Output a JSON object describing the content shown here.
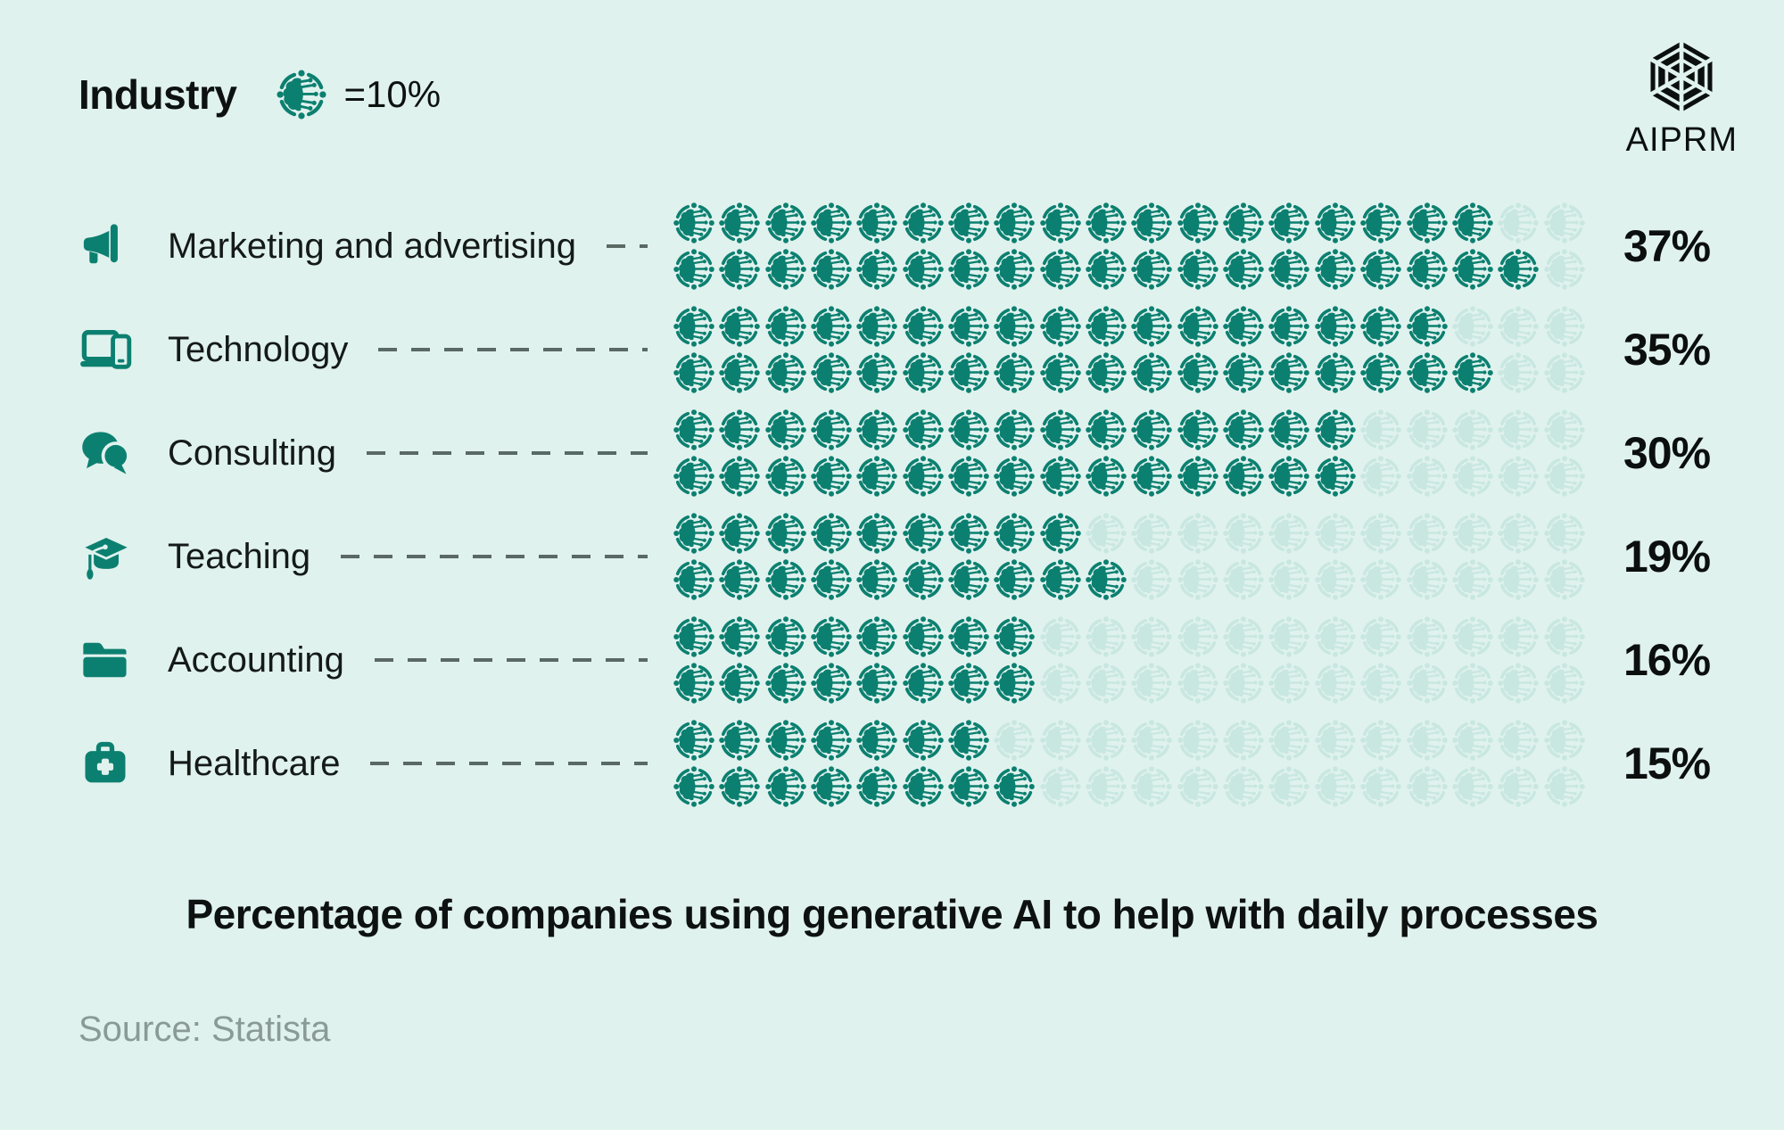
{
  "page": {
    "background": "#e0f2ee",
    "accent": "#0c8070",
    "accent_faded": "#c9e7e1",
    "dash_color": "#5a6964"
  },
  "header": {
    "title": "Industry",
    "legend_icon": "ai-brain-icon",
    "legend_label": "=10%"
  },
  "brand": {
    "logo_icon": "aiprm-hexagon-logo",
    "name": "AIPRM"
  },
  "chart_data": {
    "type": "bar",
    "subtype": "pictogram",
    "title": "Percentage of companies using generative AI to help with daily processes",
    "legend": "1 brain icon row legend shown as =10%",
    "categories": [
      "Marketing and advertising",
      "Technology",
      "Consulting",
      "Teaching",
      "Accounting",
      "Healthcare"
    ],
    "values": [
      37,
      35,
      30,
      19,
      16,
      15
    ],
    "value_labels": [
      "37%",
      "35%",
      "30%",
      "19%",
      "16%",
      "15%"
    ],
    "icons_per_line": 20,
    "icon_lines_per_category": 2,
    "total_icon_slots_per_category": 40,
    "xlabel": "",
    "ylabel": "Industry",
    "ylim": [
      0,
      40
    ]
  },
  "rows": [
    {
      "label": "Marketing and advertising",
      "icon": "icon-megaphone",
      "icon_name": "megaphone-icon",
      "percent_label": "37%",
      "value": 37,
      "top_filled": 18,
      "bottom_filled": 19
    },
    {
      "label": "Technology",
      "icon": "icon-devices",
      "icon_name": "laptop-phone-icon",
      "percent_label": "35%",
      "value": 35,
      "top_filled": 17,
      "bottom_filled": 18
    },
    {
      "label": "Consulting",
      "icon": "icon-chat",
      "icon_name": "chat-bubbles-icon",
      "percent_label": "30%",
      "value": 30,
      "top_filled": 15,
      "bottom_filled": 15
    },
    {
      "label": "Teaching",
      "icon": "icon-grad",
      "icon_name": "graduation-cap-icon",
      "percent_label": "19%",
      "value": 19,
      "top_filled": 9,
      "bottom_filled": 10
    },
    {
      "label": "Accounting",
      "icon": "icon-folder",
      "icon_name": "folder-icon",
      "percent_label": "16%",
      "value": 16,
      "top_filled": 8,
      "bottom_filled": 8
    },
    {
      "label": "Healthcare",
      "icon": "icon-medical",
      "icon_name": "medical-bag-icon",
      "percent_label": "15%",
      "value": 15,
      "top_filled": 7,
      "bottom_filled": 8
    }
  ],
  "footer": {
    "title": "Percentage of companies using generative AI to help with daily processes",
    "source": "Source: Statista"
  }
}
